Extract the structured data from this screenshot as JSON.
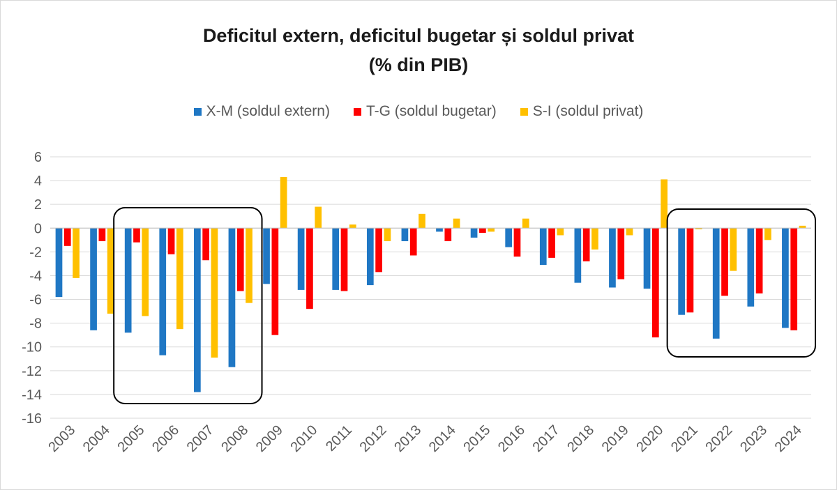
{
  "chart_data": {
    "type": "bar",
    "title": [
      "Deficitul extern, deficitul bugetar și soldul privat",
      "(% din PIB)"
    ],
    "categories": [
      "2003",
      "2004",
      "2005",
      "2006",
      "2007",
      "2008",
      "2009",
      "2010",
      "2011",
      "2012",
      "2013",
      "2014",
      "2015",
      "2016",
      "2017",
      "2018",
      "2019",
      "2020",
      "2021",
      "2022",
      "2023",
      "2024"
    ],
    "series": [
      {
        "name": "X-M (soldul extern)",
        "color": "#1f77c4",
        "values": [
          -5.8,
          -8.6,
          -8.8,
          -10.7,
          -13.8,
          -11.7,
          -4.7,
          -5.2,
          -5.2,
          -4.8,
          -1.1,
          -0.3,
          -0.8,
          -1.6,
          -3.1,
          -4.6,
          -5.0,
          -5.1,
          -7.3,
          -9.3,
          -6.6,
          -8.4
        ]
      },
      {
        "name": "T-G (soldul bugetar)",
        "color": "#ff0000",
        "values": [
          -1.5,
          -1.1,
          -1.2,
          -2.2,
          -2.7,
          -5.3,
          -9.0,
          -6.8,
          -5.3,
          -3.7,
          -2.3,
          -1.1,
          -0.4,
          -2.4,
          -2.5,
          -2.8,
          -4.3,
          -9.2,
          -7.1,
          -5.7,
          -5.5,
          -8.6
        ]
      },
      {
        "name": "S-I (soldul privat)",
        "color": "#ffc000",
        "values": [
          -4.2,
          -7.2,
          -7.4,
          -8.5,
          -10.9,
          -6.3,
          4.3,
          1.8,
          0.3,
          -1.1,
          1.2,
          0.8,
          -0.3,
          0.8,
          -0.6,
          -1.8,
          -0.6,
          4.1,
          -0.1,
          -3.6,
          -1.0,
          0.2
        ]
      }
    ],
    "ylim": [
      -16,
      6
    ],
    "yticks": [
      6,
      4,
      2,
      0,
      -2,
      -4,
      -6,
      -8,
      -10,
      -12,
      -14,
      -16
    ],
    "xlabel": "",
    "ylabel": "",
    "grid": true,
    "legend": "top-center",
    "highlight_groups": [
      [
        "2005",
        "2008"
      ],
      [
        "2021",
        "2024"
      ]
    ]
  }
}
